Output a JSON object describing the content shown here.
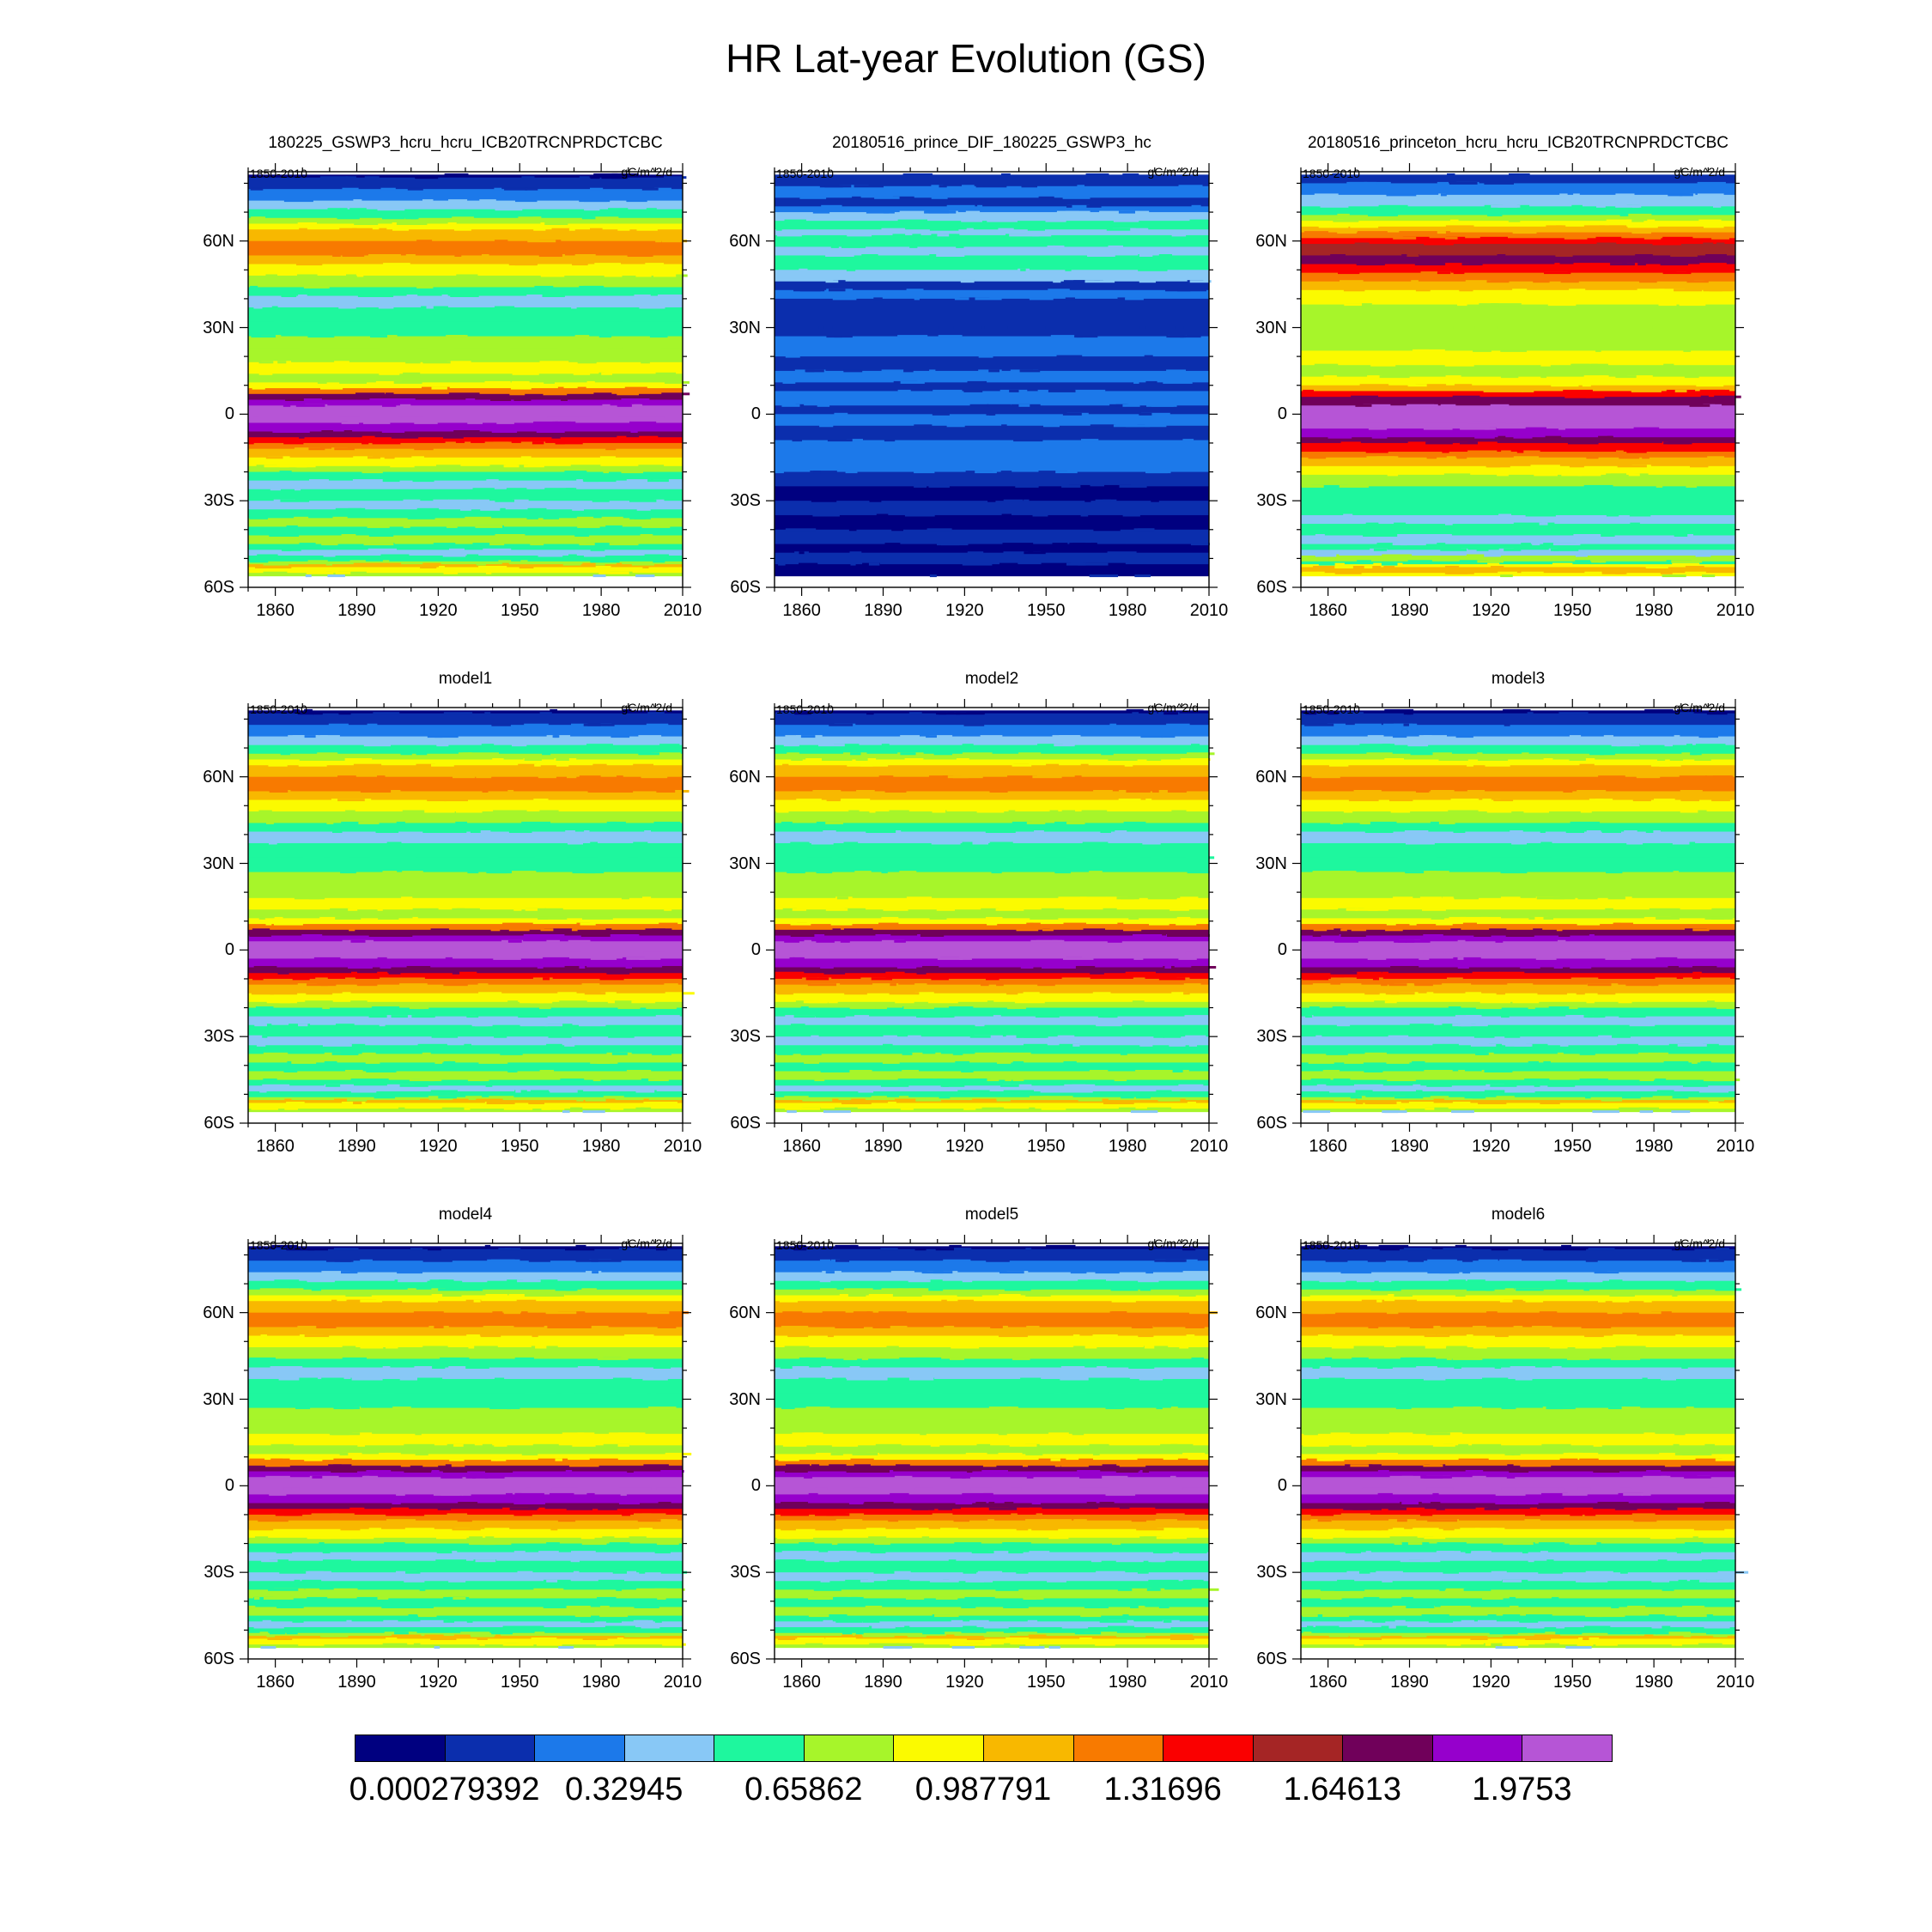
{
  "chart_data": {
    "type": "heatmap",
    "title": "HR Lat-year Evolution (GS)",
    "layout": "3x3 grid",
    "period_label": "1850-2010",
    "units": "gC/m^2/d",
    "x_tick_labels": [
      "1860",
      "1890",
      "1920",
      "1950",
      "1980",
      "2010"
    ],
    "x_tick_values": [
      1860,
      1890,
      1920,
      1950,
      1980,
      2010
    ],
    "xlim": [
      1850,
      2010
    ],
    "y_tick_labels": [
      "60N",
      "30N",
      "0",
      "30S",
      "60S"
    ],
    "y_tick_values": [
      60,
      30,
      0,
      -30,
      -60
    ],
    "ylim": [
      -60,
      84
    ],
    "panels": [
      {
        "title": "180225_GSWP3_hcru_hcru_ICB20TRCNPRDCTCBC",
        "profile": "base"
      },
      {
        "title": "20180516_prince_DIF_180225_GSWP3_hc",
        "profile": "diff"
      },
      {
        "title": "20180516_princeton_hcru_hcru_ICB20TRCNPRDCTCBC",
        "profile": "princeton"
      },
      {
        "title": "model1",
        "profile": "model"
      },
      {
        "title": "model2",
        "profile": "model"
      },
      {
        "title": "model3",
        "profile": "model"
      },
      {
        "title": "model4",
        "profile": "model"
      },
      {
        "title": "model5",
        "profile": "model"
      },
      {
        "title": "model6",
        "profile": "model"
      }
    ],
    "colorbar": {
      "colors": [
        "#000080",
        "#0b2ead",
        "#1c79ea",
        "#88c8f6",
        "#1ef79e",
        "#a7f52a",
        "#fbfa00",
        "#f8b800",
        "#f87a00",
        "#fa0000",
        "#a52525",
        "#70005a",
        "#9600cc",
        "#b655d6"
      ],
      "labels": [
        "0.000279392",
        "0.32945",
        "0.65862",
        "0.987791",
        "1.31696",
        "1.64613",
        "1.9753"
      ]
    },
    "latitude_profiles": {
      "base": [
        [
          84,
          0
        ],
        [
          82,
          1
        ],
        [
          78,
          2
        ],
        [
          74,
          3
        ],
        [
          71,
          4
        ],
        [
          68,
          5
        ],
        [
          66,
          6
        ],
        [
          64,
          7
        ],
        [
          60,
          8
        ],
        [
          55,
          7
        ],
        [
          52,
          6
        ],
        [
          48,
          5
        ],
        [
          44,
          4
        ],
        [
          41,
          3
        ],
        [
          37,
          4
        ],
        [
          32,
          4
        ],
        [
          27,
          5
        ],
        [
          23,
          5
        ],
        [
          18,
          6
        ],
        [
          14,
          5
        ],
        [
          11,
          6
        ],
        [
          9,
          8
        ],
        [
          7,
          11
        ],
        [
          5,
          12
        ],
        [
          3,
          13
        ],
        [
          -1,
          13
        ],
        [
          -3,
          12
        ],
        [
          -6,
          11
        ],
        [
          -8,
          9
        ],
        [
          -10,
          8
        ],
        [
          -12,
          7
        ],
        [
          -15,
          6
        ],
        [
          -18,
          5
        ],
        [
          -20,
          4
        ],
        [
          -23,
          3
        ],
        [
          -26,
          4
        ],
        [
          -30,
          3
        ],
        [
          -33,
          4
        ],
        [
          -36,
          5
        ],
        [
          -39,
          4
        ],
        [
          -42,
          5
        ],
        [
          -45,
          4
        ],
        [
          -47,
          3
        ],
        [
          -49,
          4
        ],
        [
          -51,
          5
        ],
        [
          -52,
          7
        ],
        [
          -53,
          6
        ],
        [
          -55,
          5
        ],
        [
          -56,
          3
        ]
      ],
      "model": [
        [
          84,
          0
        ],
        [
          82,
          1
        ],
        [
          78,
          2
        ],
        [
          74,
          3
        ],
        [
          71,
          4
        ],
        [
          68,
          5
        ],
        [
          66,
          6
        ],
        [
          64,
          7
        ],
        [
          60,
          8
        ],
        [
          55,
          7
        ],
        [
          52,
          6
        ],
        [
          48,
          5
        ],
        [
          44,
          4
        ],
        [
          41,
          3
        ],
        [
          37,
          4
        ],
        [
          32,
          4
        ],
        [
          27,
          5
        ],
        [
          23,
          5
        ],
        [
          18,
          6
        ],
        [
          14,
          5
        ],
        [
          11,
          6
        ],
        [
          9,
          8
        ],
        [
          7,
          11
        ],
        [
          5,
          12
        ],
        [
          3,
          13
        ],
        [
          -1,
          13
        ],
        [
          -3,
          12
        ],
        [
          -6,
          11
        ],
        [
          -8,
          9
        ],
        [
          -10,
          8
        ],
        [
          -12,
          7
        ],
        [
          -15,
          6
        ],
        [
          -18,
          5
        ],
        [
          -20,
          4
        ],
        [
          -23,
          3
        ],
        [
          -26,
          4
        ],
        [
          -30,
          3
        ],
        [
          -33,
          4
        ],
        [
          -36,
          5
        ],
        [
          -39,
          4
        ],
        [
          -42,
          5
        ],
        [
          -45,
          4
        ],
        [
          -47,
          3
        ],
        [
          -49,
          4
        ],
        [
          -51,
          5
        ],
        [
          -52,
          7
        ],
        [
          -53,
          6
        ],
        [
          -55,
          5
        ],
        [
          -56,
          3
        ]
      ],
      "princeton": [
        [
          84,
          1
        ],
        [
          80,
          2
        ],
        [
          76,
          3
        ],
        [
          72,
          4
        ],
        [
          69,
          5
        ],
        [
          67,
          6
        ],
        [
          65,
          7
        ],
        [
          63,
          8
        ],
        [
          61,
          9
        ],
        [
          59,
          10
        ],
        [
          55,
          11
        ],
        [
          52,
          9
        ],
        [
          49,
          8
        ],
        [
          46,
          7
        ],
        [
          43,
          6
        ],
        [
          38,
          5
        ],
        [
          30,
          5
        ],
        [
          22,
          6
        ],
        [
          17,
          5
        ],
        [
          13,
          6
        ],
        [
          10,
          7
        ],
        [
          8,
          9
        ],
        [
          6,
          11
        ],
        [
          3,
          13
        ],
        [
          -3,
          13
        ],
        [
          -5,
          12
        ],
        [
          -8,
          11
        ],
        [
          -10,
          9
        ],
        [
          -13,
          8
        ],
        [
          -15,
          7
        ],
        [
          -18,
          6
        ],
        [
          -21,
          5
        ],
        [
          -25,
          4
        ],
        [
          -30,
          4
        ],
        [
          -35,
          3
        ],
        [
          -38,
          4
        ],
        [
          -42,
          3
        ],
        [
          -45,
          4
        ],
        [
          -47,
          3
        ],
        [
          -49,
          5
        ],
        [
          -51,
          4
        ],
        [
          -52,
          6
        ],
        [
          -53,
          7
        ],
        [
          -55,
          6
        ],
        [
          -56,
          5
        ]
      ],
      "diff": [
        [
          84,
          1
        ],
        [
          79,
          2
        ],
        [
          75,
          1
        ],
        [
          72,
          2
        ],
        [
          70,
          3
        ],
        [
          67,
          4
        ],
        [
          64,
          3
        ],
        [
          62,
          4
        ],
        [
          58,
          3
        ],
        [
          55,
          4
        ],
        [
          50,
          3
        ],
        [
          46,
          1
        ],
        [
          43,
          2
        ],
        [
          40,
          1
        ],
        [
          30,
          1
        ],
        [
          27,
          2
        ],
        [
          20,
          1
        ],
        [
          15,
          2
        ],
        [
          11,
          1
        ],
        [
          8,
          2
        ],
        [
          3,
          1
        ],
        [
          0,
          2
        ],
        [
          -4,
          1
        ],
        [
          -9,
          2
        ],
        [
          -20,
          1
        ],
        [
          -25,
          0
        ],
        [
          -30,
          1
        ],
        [
          -35,
          0
        ],
        [
          -40,
          1
        ],
        [
          -45,
          0
        ],
        [
          -48,
          1
        ],
        [
          -52,
          0
        ],
        [
          -56,
          1
        ]
      ]
    }
  }
}
